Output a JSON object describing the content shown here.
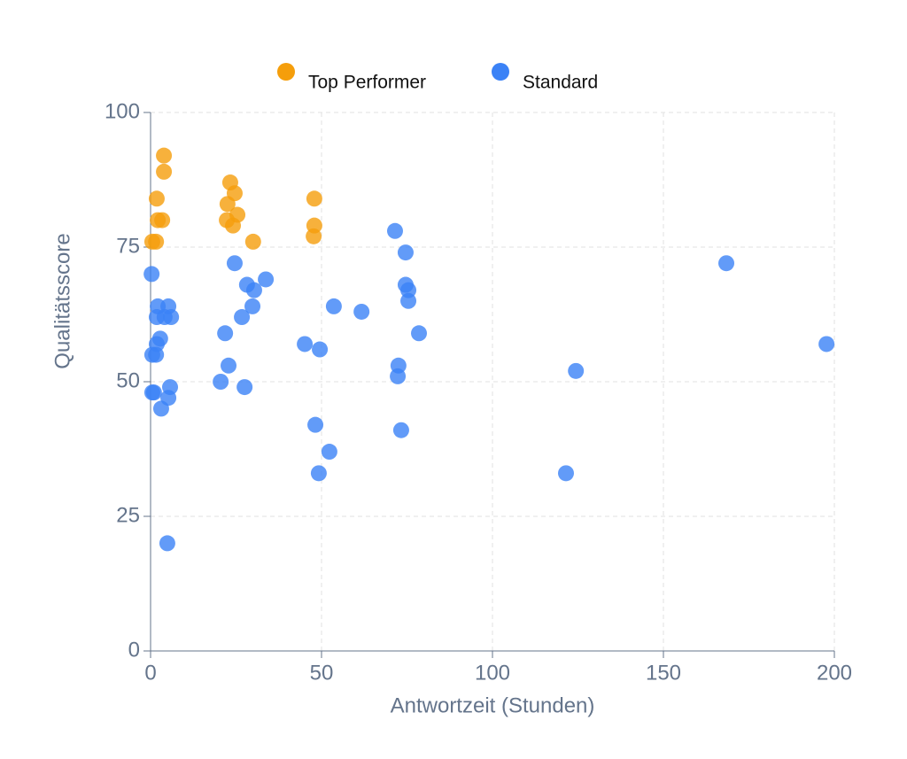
{
  "chart_data": {
    "type": "scatter",
    "x_label": "Antwortzeit (Stunden)",
    "y_label": "Qualitätsscore",
    "xlim": [
      0,
      200
    ],
    "xticks": [
      0,
      50,
      100,
      150,
      200
    ],
    "ylim": [
      0,
      100
    ],
    "yticks": [
      0,
      25,
      50,
      75,
      100
    ],
    "grid": true,
    "legend": "top",
    "series": [
      {
        "name": "Top Performer",
        "color": "#f59e0b",
        "x": [
          3.9,
          3.9,
          1.8,
          2.1,
          3.4,
          0.5,
          1.6,
          23.3,
          24.6,
          22.5,
          25.4,
          22.3,
          24.1,
          30,
          47.9,
          47.9,
          47.7
        ],
        "values": [
          92,
          89,
          84,
          80,
          80,
          76,
          76,
          87,
          85,
          83,
          81,
          80,
          79,
          76,
          84,
          79,
          77
        ]
      },
      {
        "name": "Standard",
        "color": "#3b82f6",
        "x": [
          0.3,
          5.2,
          2.1,
          1.8,
          4.1,
          6,
          2.8,
          1.8,
          0.5,
          1.6,
          0.5,
          1,
          5.7,
          5.2,
          3.1,
          4.9,
          24.6,
          28.2,
          33.7,
          30.3,
          29.8,
          26.7,
          21.8,
          22.8,
          20.5,
          27.5,
          45.1,
          49.5,
          53.6,
          61.7,
          48.2,
          52.3,
          49.2,
          71.5,
          74.6,
          74.6,
          75.4,
          75.4,
          78.5,
          72.5,
          72.3,
          73.3,
          124.4,
          121.5,
          168.4,
          197.7
        ],
        "values": [
          70,
          64,
          64,
          62,
          62,
          62,
          58,
          57,
          55,
          55,
          48,
          48,
          49,
          47,
          45,
          20,
          72,
          68,
          69,
          67,
          64,
          62,
          59,
          53,
          50,
          49,
          57,
          56,
          64,
          63,
          42,
          37,
          33,
          78,
          74,
          68,
          67,
          65,
          59,
          53,
          51,
          41,
          52,
          33,
          72,
          57
        ]
      }
    ]
  }
}
